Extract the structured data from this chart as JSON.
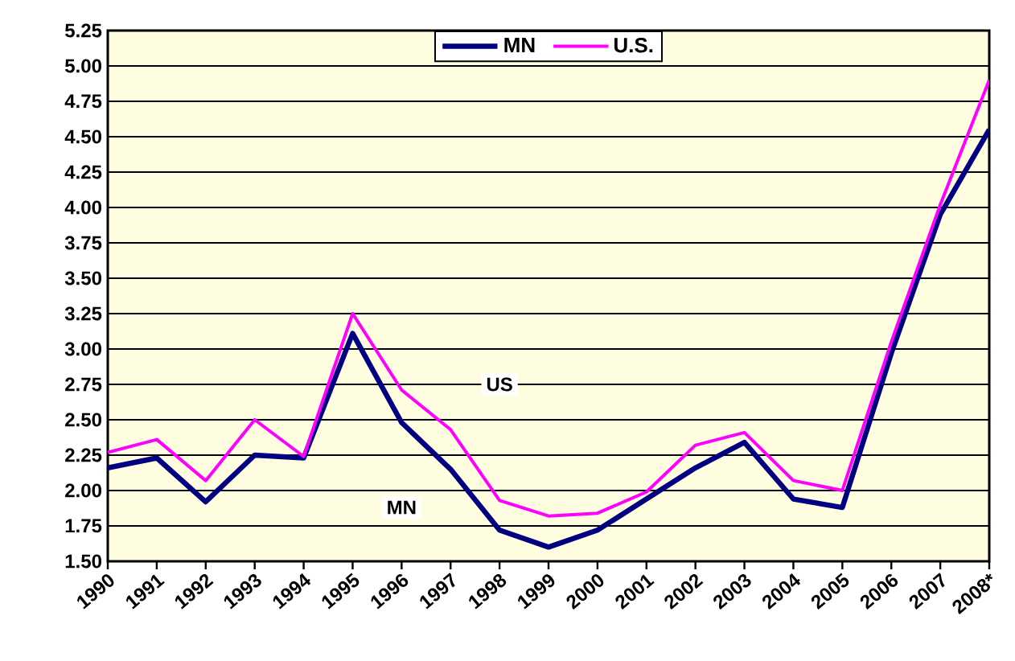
{
  "chart_data": {
    "type": "line",
    "categories": [
      "1990",
      "1991",
      "1992",
      "1993",
      "1994",
      "1995",
      "1996",
      "1997",
      "1998",
      "1999",
      "2000",
      "2001",
      "2002",
      "2003",
      "2004",
      "2005",
      "2006",
      "2007",
      "2008*"
    ],
    "series": [
      {
        "name": "MN",
        "color": "#000080",
        "values": [
          2.16,
          2.23,
          1.92,
          2.25,
          2.23,
          3.11,
          2.48,
          2.15,
          1.72,
          1.6,
          1.72,
          1.94,
          2.16,
          2.34,
          1.94,
          1.88,
          2.97,
          3.95,
          4.55
        ]
      },
      {
        "name": "U.S.",
        "color": "#ff00ff",
        "values": [
          2.27,
          2.36,
          2.07,
          2.5,
          2.24,
          3.25,
          2.71,
          2.43,
          1.93,
          1.82,
          1.84,
          1.99,
          2.32,
          2.41,
          2.07,
          2.0,
          3.05,
          4.02,
          4.9
        ]
      }
    ],
    "ylim": [
      1.5,
      5.25
    ],
    "yticks": [
      {
        "value": 1.5,
        "label": "1.50"
      },
      {
        "value": 1.75,
        "label": "1.75"
      },
      {
        "value": 2.0,
        "label": "2.00"
      },
      {
        "value": 2.25,
        "label": "2.25"
      },
      {
        "value": 2.5,
        "label": "2.50"
      },
      {
        "value": 2.75,
        "label": "2.75"
      },
      {
        "value": 3.0,
        "label": "3.00"
      },
      {
        "value": 3.25,
        "label": "3.25"
      },
      {
        "value": 3.5,
        "label": "3.50"
      },
      {
        "value": 3.75,
        "label": "3.75"
      },
      {
        "value": 4.0,
        "label": "4.00"
      },
      {
        "value": 4.25,
        "label": "4.25"
      },
      {
        "value": 4.5,
        "label": "4.50"
      },
      {
        "value": 4.75,
        "label": "4.75"
      },
      {
        "value": 5.0,
        "label": "5.00"
      },
      {
        "value": 5.25,
        "label": "5.25"
      }
    ],
    "annotations": [
      {
        "text": "US",
        "x": "1998",
        "y": 2.75
      },
      {
        "text": "MN",
        "x": "1996",
        "y": 1.88
      }
    ],
    "grid": "y",
    "legend": "top",
    "marker": "none",
    "line_style": "solid"
  }
}
